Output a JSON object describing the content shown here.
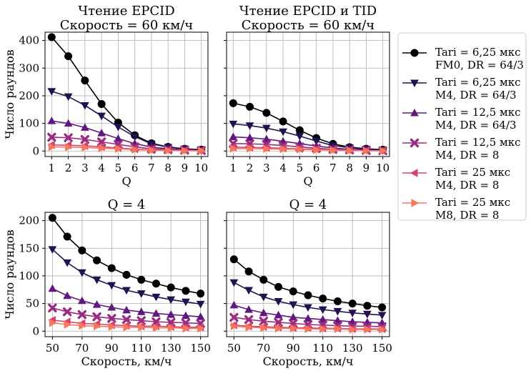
{
  "series_styles": [
    {
      "color": "#000000",
      "marker": "circle"
    },
    {
      "color": "#231151",
      "marker": "triangle-down"
    },
    {
      "color": "#5f187f",
      "marker": "triangle-up"
    },
    {
      "color": "#982d80",
      "marker": "x"
    },
    {
      "color": "#d3436e",
      "marker": "triangle-left"
    },
    {
      "color": "#f8765c",
      "marker": "triangle-right"
    }
  ],
  "legend": [
    {
      "line1": "Tari = 6,25 мкс",
      "line2": "FM0, DR = 64/3"
    },
    {
      "line1": "Tari = 6,25 мкс",
      "line2": "M4, DR = 64/3"
    },
    {
      "line1": "Tari = 12,5 мкс",
      "line2": "M4, DR = 64/3"
    },
    {
      "line1": "Tari = 12,5 мкс",
      "line2": "M4, DR = 8"
    },
    {
      "line1": "Tari = 25 мкс",
      "line2": "M4, DR = 8"
    },
    {
      "line1": "Tari = 25 мкс",
      "line2": "M8, DR = 8"
    }
  ],
  "chart_data": [
    {
      "type": "line",
      "title_line1": "Чтение EPCID",
      "title_line2": "Скорость = 60 км/ч",
      "xlabel": "Q",
      "ylabel": "Число раундов",
      "xlim": [
        0.6,
        10.4
      ],
      "ylim": [
        -20,
        430
      ],
      "xticks": [
        1,
        2,
        3,
        4,
        5,
        6,
        7,
        8,
        9,
        10
      ],
      "yticks": [
        0,
        100,
        200,
        300,
        400
      ],
      "x": [
        1,
        2,
        3,
        4,
        5,
        6,
        7,
        8,
        9,
        10
      ],
      "series": [
        {
          "values": [
            412,
            343,
            255,
            170,
            103,
            57,
            28,
            15,
            8,
            5
          ]
        },
        {
          "values": [
            216,
            197,
            165,
            127,
            87,
            52,
            26,
            14,
            8,
            4
          ]
        },
        {
          "values": [
            109,
            100,
            85,
            65,
            45,
            27,
            14,
            8,
            5,
            3
          ]
        },
        {
          "values": [
            50,
            48,
            42,
            33,
            24,
            15,
            8,
            5,
            3,
            2
          ]
        },
        {
          "values": [
            22,
            21,
            19,
            15,
            11,
            7,
            4,
            3,
            2,
            1
          ]
        },
        {
          "values": [
            15,
            14,
            13,
            10,
            8,
            5,
            3,
            2,
            1,
            1
          ]
        }
      ]
    },
    {
      "type": "line",
      "title_line1": "Чтение EPCID и TID",
      "title_line2": "Скорость = 60 км/ч",
      "xlabel": "Q",
      "ylabel": "",
      "xlim": [
        0.6,
        10.4
      ],
      "ylim": [
        -20,
        430
      ],
      "xticks": [
        1,
        2,
        3,
        4,
        5,
        6,
        7,
        8,
        9,
        10
      ],
      "yticks": [
        0,
        100,
        200,
        300,
        400
      ],
      "x": [
        1,
        2,
        3,
        4,
        5,
        6,
        7,
        8,
        9,
        10
      ],
      "series": [
        {
          "values": [
            173,
            160,
            138,
            107,
            75,
            47,
            26,
            14,
            8,
            5
          ]
        },
        {
          "values": [
            98,
            92,
            83,
            70,
            54,
            36,
            20,
            12,
            7,
            4
          ]
        },
        {
          "values": [
            51,
            48,
            43,
            35,
            27,
            18,
            11,
            6,
            4,
            2
          ]
        },
        {
          "values": [
            27,
            26,
            24,
            20,
            15,
            10,
            6,
            4,
            2,
            1
          ]
        },
        {
          "values": [
            14,
            13,
            12,
            10,
            8,
            6,
            4,
            2,
            1,
            1
          ]
        },
        {
          "values": [
            9,
            9,
            8,
            7,
            6,
            4,
            3,
            2,
            1,
            1
          ]
        }
      ]
    },
    {
      "type": "line",
      "title_line1": "Q = 4",
      "xlabel": "Скорость, км/ч",
      "ylabel": "Число раундов",
      "xlim": [
        45,
        155
      ],
      "ylim": [
        -10,
        215
      ],
      "xticks": [
        50,
        70,
        90,
        110,
        130,
        150
      ],
      "yticks": [
        0,
        50,
        100,
        150,
        200
      ],
      "x": [
        50,
        60,
        70,
        80,
        90,
        100,
        110,
        120,
        130,
        140,
        150
      ],
      "series": [
        {
          "values": [
            205,
            171,
            146,
            128,
            114,
            102,
            93,
            86,
            79,
            73,
            68
          ]
        },
        {
          "values": [
            148,
            124,
            106,
            93,
            83,
            74,
            68,
            62,
            57,
            53,
            49
          ]
        },
        {
          "values": [
            77,
            64,
            55,
            48,
            43,
            38,
            35,
            32,
            30,
            28,
            26
          ]
        },
        {
          "values": [
            42,
            35,
            30,
            26,
            23,
            21,
            19,
            17,
            16,
            15,
            14
          ]
        },
        {
          "values": [
            20,
            17,
            14,
            13,
            11,
            10,
            9,
            9,
            8,
            7,
            7
          ]
        },
        {
          "values": [
            15,
            12,
            10,
            9,
            8,
            7,
            7,
            6,
            6,
            5,
            5
          ]
        }
      ]
    },
    {
      "type": "line",
      "title_line1": "Q = 4",
      "xlabel": "Скорость, км/ч",
      "ylabel": "",
      "xlim": [
        45,
        155
      ],
      "ylim": [
        -10,
        215
      ],
      "xticks": [
        50,
        70,
        90,
        110,
        130,
        150
      ],
      "yticks": [
        0,
        50,
        100,
        150,
        200
      ],
      "x": [
        50,
        60,
        70,
        80,
        90,
        100,
        110,
        120,
        130,
        140,
        150
      ],
      "series": [
        {
          "values": [
            130,
            108,
            93,
            80,
            72,
            65,
            59,
            54,
            50,
            46,
            43
          ]
        },
        {
          "values": [
            88,
            74,
            62,
            54,
            48,
            43,
            39,
            36,
            33,
            31,
            29
          ]
        },
        {
          "values": [
            47,
            39,
            33,
            29,
            25,
            23,
            21,
            19,
            17,
            16,
            15
          ]
        },
        {
          "values": [
            25,
            21,
            18,
            16,
            14,
            12,
            11,
            10,
            9,
            9,
            8
          ]
        },
        {
          "values": [
            11,
            9,
            8,
            7,
            6,
            6,
            5,
            5,
            4,
            4,
            4
          ]
        },
        {
          "values": [
            9,
            7,
            6,
            5,
            5,
            4,
            4,
            4,
            3,
            3,
            3
          ]
        }
      ]
    }
  ]
}
